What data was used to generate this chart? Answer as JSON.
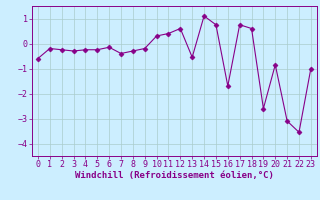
{
  "x": [
    0,
    1,
    2,
    3,
    4,
    5,
    6,
    7,
    8,
    9,
    10,
    11,
    12,
    13,
    14,
    15,
    16,
    17,
    18,
    19,
    20,
    21,
    22,
    23
  ],
  "y": [
    -0.6,
    -0.2,
    -0.25,
    -0.3,
    -0.25,
    -0.25,
    -0.15,
    -0.4,
    -0.3,
    -0.2,
    0.3,
    0.4,
    0.6,
    -0.55,
    1.1,
    0.75,
    -1.7,
    0.75,
    0.6,
    -2.6,
    -0.85,
    -3.1,
    -3.55,
    -1.0
  ],
  "line_color": "#880088",
  "marker": "D",
  "markersize": 2.5,
  "linewidth": 0.8,
  "xlabel": "Windchill (Refroidissement éolien,°C)",
  "xlabel_fontsize": 6.5,
  "ylim": [
    -4.5,
    1.5
  ],
  "xlim": [
    -0.5,
    23.5
  ],
  "yticks": [
    -4,
    -3,
    -2,
    -1,
    0,
    1
  ],
  "xticks": [
    0,
    1,
    2,
    3,
    4,
    5,
    6,
    7,
    8,
    9,
    10,
    11,
    12,
    13,
    14,
    15,
    16,
    17,
    18,
    19,
    20,
    21,
    22,
    23
  ],
  "tick_fontsize": 6,
  "background_color": "#cceeff",
  "grid_color": "#aacccc",
  "spine_color": "#880088"
}
